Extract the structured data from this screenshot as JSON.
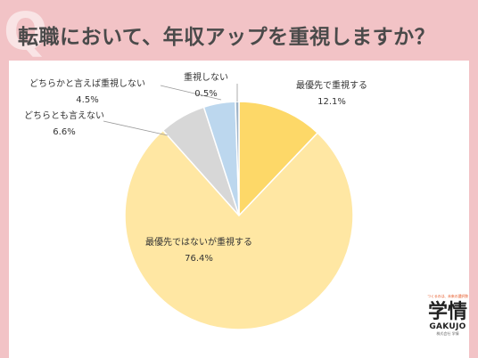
{
  "title": "転職において、年収アップを重視しますか？",
  "watermark": "Q",
  "colors": {
    "background": "#f2c3c6",
    "slice_1": "#fdd868",
    "slice_2": "#ffe7a3",
    "slice_3": "#d7d7d7",
    "slice_4": "#bcd7ee",
    "slice_5": "#9fb4c8"
  },
  "chart_data": {
    "type": "pie",
    "title": "",
    "slices": [
      {
        "label": "最優先で重視する",
        "value": 12.1,
        "value_text": "12.1%"
      },
      {
        "label": "最優先ではないが重視する",
        "value": 76.4,
        "value_text": "76.4%"
      },
      {
        "label": "どちらとも言えない",
        "value": 6.6,
        "value_text": "6.6%"
      },
      {
        "label": "どちらかと言えば重視しない",
        "value": 4.5,
        "value_text": "4.5%"
      },
      {
        "label": "重視しない",
        "value": 0.5,
        "value_text": "0.5%"
      }
    ],
    "start_angle": "12 o'clock",
    "direction": "clockwise"
  },
  "logo": {
    "tagline": "つくるのは、未来の選択肢",
    "main": "学情",
    "english": "GAKUJO",
    "sub": "株式会社 学情"
  }
}
